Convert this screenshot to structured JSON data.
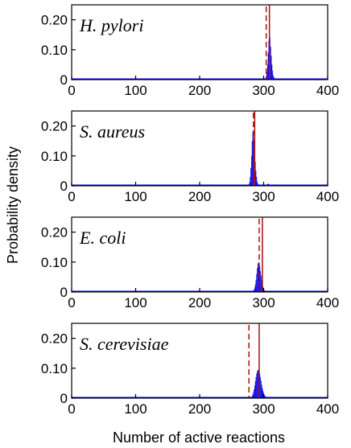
{
  "chart_data": {
    "type": "histogram",
    "xlabel": "Number of active reactions",
    "ylabel": "Probability density",
    "xlim": [
      0,
      400
    ],
    "ylim": [
      0,
      0.25
    ],
    "xticks": [
      0,
      100,
      200,
      300,
      400
    ],
    "yticks": [
      {
        "value": 0,
        "label": "0"
      },
      {
        "value": 0.1,
        "label": "0.10"
      },
      {
        "value": 0.2,
        "label": "0.20"
      }
    ],
    "colors": {
      "histogram": "#0000ee",
      "solid_line": "#aa1111",
      "dashed_line": "#aa1111"
    },
    "panels": [
      {
        "label": "H. pylori",
        "solid_line_x": 309,
        "dashed_line_x": 304,
        "x": [
          302,
          303,
          304,
          305,
          306,
          307,
          308,
          309,
          310,
          311,
          312,
          313,
          314,
          315,
          316,
          317,
          318
        ],
        "values": [
          0.002,
          0.005,
          0.012,
          0.025,
          0.05,
          0.09,
          0.13,
          0.145,
          0.14,
          0.11,
          0.08,
          0.05,
          0.03,
          0.015,
          0.008,
          0.004,
          0.002
        ]
      },
      {
        "label": "S. aureus",
        "solid_line_x": 286,
        "dashed_line_x": 284,
        "x": [
          276,
          277,
          278,
          279,
          280,
          281,
          282,
          283,
          284,
          285,
          286,
          287,
          288,
          289,
          290,
          291,
          292,
          293,
          304,
          305,
          306,
          307,
          308,
          309,
          310
        ],
        "values": [
          0.002,
          0.005,
          0.012,
          0.03,
          0.06,
          0.1,
          0.15,
          0.18,
          0.175,
          0.15,
          0.12,
          0.08,
          0.05,
          0.03,
          0.015,
          0.008,
          0.004,
          0.002,
          0.002,
          0.004,
          0.006,
          0.007,
          0.006,
          0.004,
          0.002
        ]
      },
      {
        "label": "E. coli",
        "solid_line_x": 298,
        "dashed_line_x": 293,
        "x": [
          283,
          284,
          285,
          286,
          287,
          288,
          289,
          290,
          291,
          292,
          293,
          294,
          295,
          296,
          297,
          298,
          299,
          300,
          301,
          302,
          303,
          304
        ],
        "values": [
          0.002,
          0.004,
          0.008,
          0.015,
          0.025,
          0.04,
          0.06,
          0.08,
          0.095,
          0.1,
          0.095,
          0.085,
          0.07,
          0.055,
          0.04,
          0.028,
          0.018,
          0.01,
          0.006,
          0.003,
          0.002,
          0.001
        ]
      },
      {
        "label": "S. cerevisiae",
        "solid_line_x": 293,
        "dashed_line_x": 277,
        "x": [
          279,
          280,
          281,
          282,
          283,
          284,
          285,
          286,
          287,
          288,
          289,
          290,
          291,
          292,
          293,
          294,
          295,
          296,
          297,
          298,
          299,
          300,
          301,
          302,
          303,
          304,
          305,
          306
        ],
        "values": [
          0.001,
          0.002,
          0.004,
          0.007,
          0.012,
          0.02,
          0.03,
          0.042,
          0.056,
          0.07,
          0.082,
          0.09,
          0.094,
          0.094,
          0.09,
          0.082,
          0.07,
          0.058,
          0.045,
          0.034,
          0.025,
          0.018,
          0.012,
          0.008,
          0.005,
          0.003,
          0.002,
          0.001
        ]
      }
    ]
  }
}
